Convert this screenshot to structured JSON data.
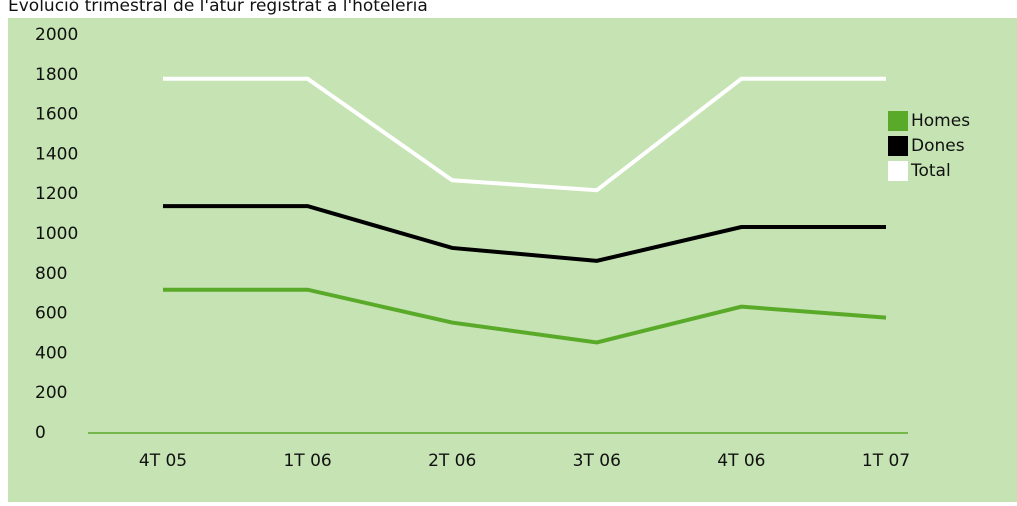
{
  "chart_data": {
    "type": "line",
    "title": "Evolució trimestral de l'atur registrat a l'hoteleria",
    "categories": [
      "4T 05",
      "1T 06",
      "2T 06",
      "3T 06",
      "4T 06",
      "1T 07"
    ],
    "series": [
      {
        "name": "Homes",
        "color": "#5aaa2a",
        "values": [
          720,
          720,
          555,
          455,
          635,
          580
        ]
      },
      {
        "name": "Dones",
        "color": "#000000",
        "values": [
          1140,
          1140,
          930,
          865,
          1035,
          1035
        ]
      },
      {
        "name": "Total",
        "color": "#ffffff",
        "values": [
          1780,
          1780,
          1270,
          1220,
          1780,
          1780
        ]
      }
    ],
    "ylim": [
      0,
      2000
    ],
    "yticks": [
      0,
      200,
      400,
      600,
      800,
      1000,
      1200,
      1400,
      1600,
      1800,
      2000
    ],
    "legend": "right"
  }
}
